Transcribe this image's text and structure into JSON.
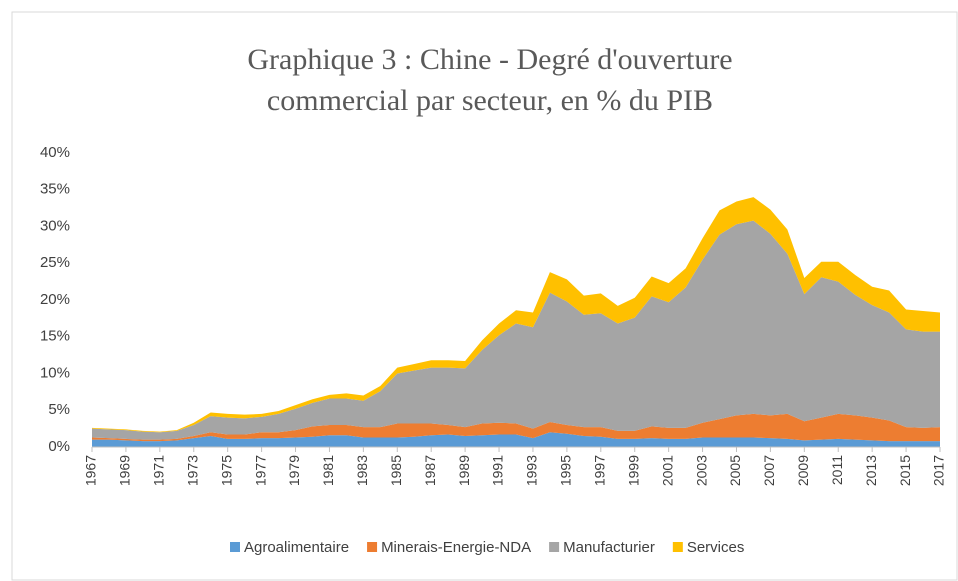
{
  "chart_data": {
    "type": "stacked_area",
    "title": "Graphique 3 : Chine - Degré d'ouverture commercial par secteur, en % du PIB",
    "x": [
      1967,
      1968,
      1969,
      1970,
      1971,
      1972,
      1973,
      1974,
      1975,
      1976,
      1977,
      1978,
      1979,
      1980,
      1981,
      1982,
      1983,
      1984,
      1985,
      1986,
      1987,
      1988,
      1989,
      1990,
      1991,
      1992,
      1993,
      1994,
      1995,
      1996,
      1997,
      1998,
      1999,
      2000,
      2001,
      2002,
      2003,
      2004,
      2005,
      2006,
      2007,
      2008,
      2009,
      2010,
      2011,
      2012,
      2013,
      2014,
      2015,
      2016,
      2017
    ],
    "xlim": [
      1967,
      2017
    ],
    "xticks": [
      1967,
      1969,
      1971,
      1973,
      1975,
      1977,
      1979,
      1981,
      1983,
      1985,
      1987,
      1989,
      1991,
      1993,
      1995,
      1997,
      1999,
      2001,
      2003,
      2005,
      2007,
      2009,
      2011,
      2013,
      2015,
      2017
    ],
    "ylim": [
      0,
      40
    ],
    "yticks": [
      {
        "value": 0,
        "label": "0%"
      },
      {
        "value": 5,
        "label": "5%"
      },
      {
        "value": 10,
        "label": "10%"
      },
      {
        "value": 15,
        "label": "15%"
      },
      {
        "value": 20,
        "label": "20%"
      },
      {
        "value": 25,
        "label": "25%"
      },
      {
        "value": 30,
        "label": "30%"
      },
      {
        "value": 35,
        "label": "35%"
      },
      {
        "value": 40,
        "label": "40%"
      }
    ],
    "grid": false,
    "legend": "bottom",
    "series": [
      {
        "name": "Agroalimentaire",
        "color": "#5b9bd5",
        "values": [
          1.0,
          1.0,
          0.9,
          0.8,
          0.8,
          0.9,
          1.2,
          1.5,
          1.1,
          1.1,
          1.2,
          1.2,
          1.3,
          1.4,
          1.6,
          1.6,
          1.3,
          1.3,
          1.3,
          1.4,
          1.6,
          1.7,
          1.5,
          1.6,
          1.7,
          1.7,
          1.2,
          2.0,
          1.8,
          1.5,
          1.4,
          1.1,
          1.1,
          1.2,
          1.1,
          1.1,
          1.3,
          1.3,
          1.3,
          1.3,
          1.2,
          1.1,
          0.9,
          1.0,
          1.1,
          1.0,
          0.9,
          0.8,
          0.8,
          0.8,
          0.8
        ]
      },
      {
        "name": "Minerais-Energie-NDA",
        "color": "#ed7d31",
        "values": [
          0.3,
          0.2,
          0.2,
          0.2,
          0.2,
          0.2,
          0.3,
          0.5,
          0.6,
          0.6,
          0.8,
          0.8,
          1.0,
          1.4,
          1.4,
          1.4,
          1.4,
          1.4,
          1.9,
          1.8,
          1.6,
          1.3,
          1.2,
          1.6,
          1.6,
          1.5,
          1.3,
          1.4,
          1.2,
          1.2,
          1.3,
          1.1,
          1.1,
          1.6,
          1.5,
          1.5,
          2.0,
          2.5,
          3.0,
          3.2,
          3.1,
          3.4,
          2.6,
          3.0,
          3.4,
          3.3,
          3.1,
          2.8,
          1.9,
          1.8,
          1.9
        ]
      },
      {
        "name": "Manufacturier",
        "color": "#a5a5a5",
        "values": [
          1.2,
          1.2,
          1.2,
          1.1,
          1.0,
          1.1,
          1.5,
          2.2,
          2.3,
          2.2,
          2.1,
          2.5,
          2.9,
          3.2,
          3.6,
          3.6,
          3.6,
          4.9,
          6.8,
          7.2,
          7.6,
          7.8,
          8.0,
          10.0,
          11.9,
          13.6,
          13.8,
          17.6,
          16.8,
          15.3,
          15.5,
          14.6,
          15.4,
          17.7,
          17.1,
          19.1,
          22.2,
          25.1,
          26.0,
          26.3,
          24.7,
          21.8,
          17.3,
          19.1,
          18.0,
          16.4,
          15.3,
          14.7,
          13.3,
          13.1,
          13.0
        ]
      },
      {
        "name": "Services",
        "color": "#ffc000",
        "values": [
          0.1,
          0.1,
          0.1,
          0.1,
          0.1,
          0.1,
          0.3,
          0.5,
          0.5,
          0.5,
          0.4,
          0.4,
          0.5,
          0.5,
          0.5,
          0.7,
          0.7,
          0.7,
          0.8,
          0.9,
          1.0,
          1.0,
          1.0,
          1.3,
          1.6,
          1.8,
          2.0,
          2.8,
          3.0,
          2.6,
          2.7,
          2.4,
          2.7,
          2.7,
          2.6,
          2.6,
          2.9,
          3.3,
          3.1,
          3.2,
          3.3,
          3.3,
          2.2,
          2.1,
          2.7,
          2.7,
          2.5,
          3.0,
          2.7,
          2.8,
          2.6
        ]
      }
    ]
  }
}
